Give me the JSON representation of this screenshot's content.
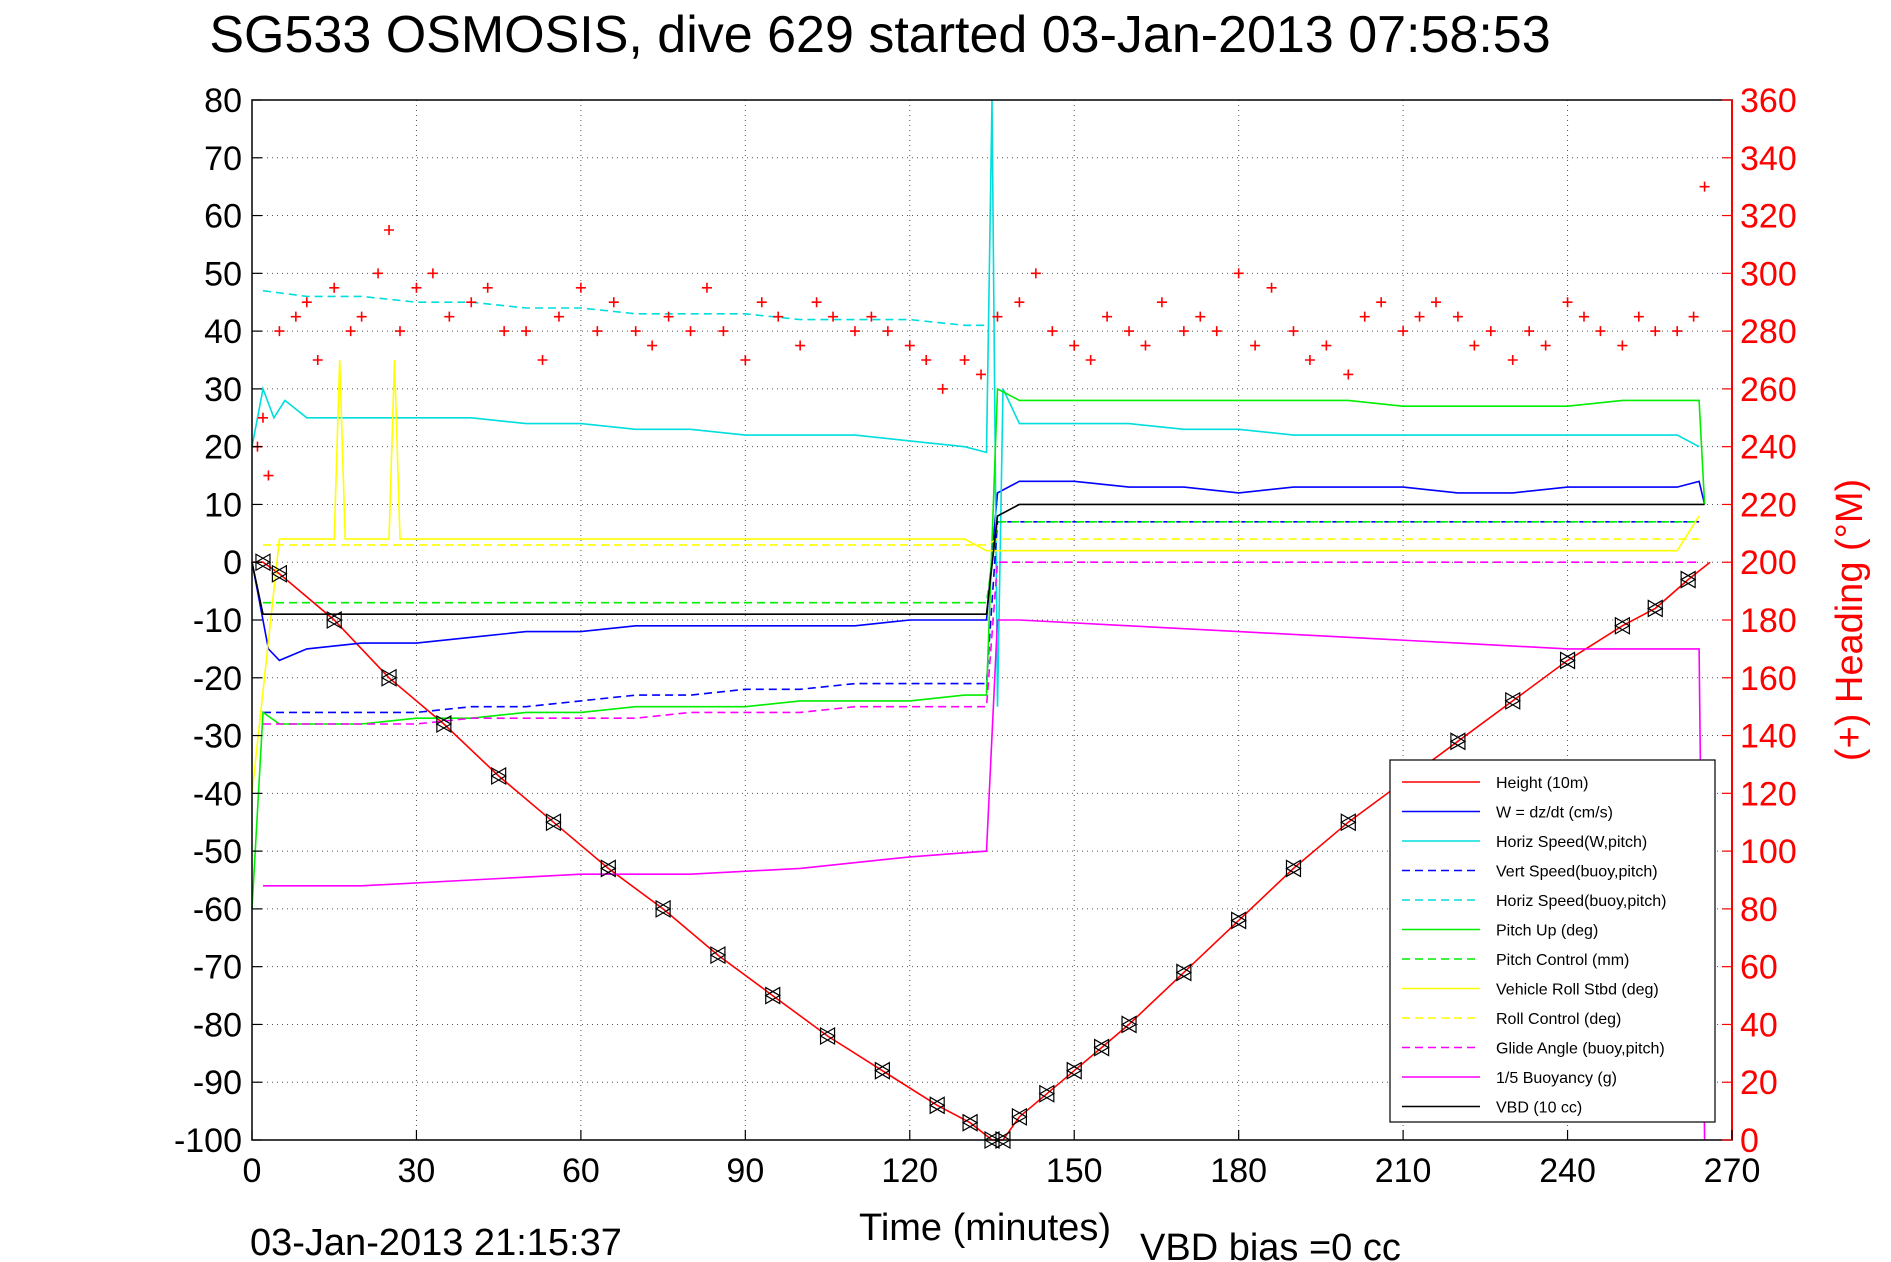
{
  "chart_data": {
    "type": "line",
    "title": "SG533 OSMOSIS, dive 629 started 03-Jan-2013 07:58:53",
    "xlabel": "Time (minutes)",
    "ylabel_right": "(+) Heading (°M)",
    "xlim": [
      0,
      270
    ],
    "ylim_left": [
      -100,
      80
    ],
    "ylim_right": [
      0,
      360
    ],
    "x_ticks": [
      "0",
      "30",
      "60",
      "90",
      "120",
      "150",
      "180",
      "210",
      "240",
      "270"
    ],
    "y_left_ticks": [
      "80",
      "70",
      "60",
      "50",
      "40",
      "30",
      "20",
      "10",
      "0",
      "-10",
      "-20",
      "-30",
      "-40",
      "-50",
      "-60",
      "-70",
      "-80",
      "-90",
      "-100"
    ],
    "y_right_ticks": [
      "360",
      "340",
      "320",
      "300",
      "280",
      "260",
      "240",
      "220",
      "200",
      "180",
      "160",
      "140",
      "120",
      "100",
      "80",
      "60",
      "40",
      "20",
      "0"
    ],
    "grid": true,
    "legend_position": "bottom-right",
    "footer_left": "03-Jan-2013 21:15:37",
    "footer_right": "VBD bias =0 cc",
    "series": [
      {
        "name": "Height (10m)",
        "color": "#ff0000",
        "style": "solid",
        "axis": "left",
        "x": [
          0,
          2,
          5,
          15,
          25,
          35,
          45,
          55,
          65,
          75,
          85,
          95,
          105,
          115,
          125,
          131,
          135,
          137,
          140,
          145,
          150,
          155,
          160,
          170,
          180,
          190,
          200,
          210,
          220,
          230,
          240,
          250,
          256,
          262,
          266
        ],
        "y": [
          0,
          0,
          -2,
          -10,
          -20,
          -28,
          -37,
          -45,
          -53,
          -60,
          -68,
          -75,
          -82,
          -88,
          -94,
          -97,
          -100,
          -100,
          -96,
          -92,
          -88,
          -84,
          -80,
          -71,
          -62,
          -53,
          -45,
          -38,
          -31,
          -24,
          -17,
          -11,
          -8,
          -3,
          0
        ]
      },
      {
        "name": "W = dz/dt (cm/s)",
        "color": "#0000ff",
        "style": "solid",
        "axis": "left",
        "x": [
          0,
          1,
          3,
          5,
          10,
          20,
          30,
          40,
          50,
          60,
          70,
          80,
          90,
          100,
          110,
          120,
          130,
          134,
          136,
          140,
          150,
          160,
          170,
          180,
          190,
          200,
          210,
          220,
          230,
          240,
          250,
          260,
          264,
          265
        ],
        "y": [
          0,
          -5,
          -15,
          -17,
          -15,
          -14,
          -14,
          -13,
          -12,
          -12,
          -11,
          -11,
          -11,
          -11,
          -11,
          -10,
          -10,
          -10,
          12,
          14,
          14,
          13,
          13,
          12,
          13,
          13,
          13,
          12,
          12,
          13,
          13,
          13,
          14,
          10
        ]
      },
      {
        "name": "Horiz Speed(W,pitch)",
        "color": "#00dddd",
        "style": "solid",
        "axis": "left",
        "x": [
          0,
          2,
          4,
          6,
          10,
          20,
          30,
          40,
          50,
          60,
          70,
          80,
          90,
          100,
          110,
          120,
          130,
          134,
          135,
          136,
          137,
          140,
          150,
          160,
          170,
          180,
          190,
          200,
          210,
          220,
          230,
          240,
          250,
          260,
          264
        ],
        "y": [
          20,
          30,
          25,
          28,
          25,
          25,
          25,
          25,
          24,
          24,
          23,
          23,
          22,
          22,
          22,
          21,
          20,
          19,
          80,
          -25,
          30,
          24,
          24,
          24,
          23,
          23,
          22,
          22,
          22,
          22,
          22,
          22,
          22,
          22,
          20
        ]
      },
      {
        "name": "Vert Speed(buoy,pitch)",
        "color": "#0000ff",
        "style": "dashed",
        "axis": "left",
        "x": [
          2,
          10,
          20,
          30,
          40,
          50,
          60,
          70,
          80,
          90,
          100,
          110,
          120,
          130,
          134,
          136,
          140,
          150,
          160,
          170,
          180,
          190,
          200,
          210,
          220,
          230,
          240,
          250,
          260,
          264
        ],
        "y": [
          -26,
          -26,
          -26,
          -26,
          -25,
          -25,
          -24,
          -23,
          -23,
          -22,
          -22,
          -21,
          -21,
          -21,
          -21,
          7,
          7,
          7,
          7,
          7,
          7,
          7,
          7,
          7,
          7,
          7,
          7,
          7,
          7,
          7
        ]
      },
      {
        "name": "Horiz Speed(buoy,pitch)",
        "color": "#00dddd",
        "style": "dashed",
        "axis": "left",
        "x": [
          2,
          10,
          20,
          30,
          40,
          50,
          60,
          70,
          80,
          90,
          100,
          110,
          120,
          130,
          134
        ],
        "y": [
          47,
          46,
          46,
          45,
          45,
          44,
          44,
          43,
          43,
          43,
          42,
          42,
          42,
          41,
          41
        ]
      },
      {
        "name": "Pitch Up (deg)",
        "color": "#00ee00",
        "style": "solid",
        "axis": "left",
        "x": [
          0,
          2,
          5,
          10,
          20,
          30,
          40,
          50,
          60,
          70,
          80,
          90,
          100,
          110,
          120,
          130,
          134,
          136,
          140,
          150,
          160,
          170,
          180,
          190,
          200,
          210,
          220,
          230,
          240,
          250,
          260,
          264,
          265
        ],
        "y": [
          -60,
          -26,
          -28,
          -28,
          -28,
          -27,
          -27,
          -26,
          -26,
          -25,
          -25,
          -25,
          -24,
          -24,
          -24,
          -23,
          -23,
          30,
          28,
          28,
          28,
          28,
          28,
          28,
          28,
          27,
          27,
          27,
          27,
          28,
          28,
          28,
          10
        ]
      },
      {
        "name": "Pitch Control (mm)",
        "color": "#00ee00",
        "style": "dashed",
        "axis": "left",
        "x": [
          2,
          30,
          60,
          90,
          120,
          134,
          136,
          150,
          180,
          210,
          240,
          264
        ],
        "y": [
          -7,
          -7,
          -7,
          -7,
          -7,
          -7,
          7,
          7,
          7,
          7,
          7,
          7
        ]
      },
      {
        "name": "Vehicle Roll Stbd (deg)",
        "color": "#ffff00",
        "style": "solid",
        "axis": "left",
        "x": [
          0,
          5,
          10,
          15,
          16,
          17,
          20,
          25,
          26,
          27,
          30,
          60,
          90,
          120,
          130,
          134,
          136,
          140,
          160,
          180,
          200,
          220,
          240,
          260,
          264
        ],
        "y": [
          -40,
          4,
          4,
          4,
          35,
          4,
          4,
          4,
          35,
          4,
          4,
          4,
          4,
          4,
          4,
          2,
          2,
          2,
          2,
          2,
          2,
          2,
          2,
          2,
          8
        ]
      },
      {
        "name": "Roll Control (deg)",
        "color": "#ffff00",
        "style": "dashed",
        "axis": "left",
        "x": [
          2,
          30,
          60,
          90,
          120,
          134,
          136,
          170,
          210,
          240,
          264
        ],
        "y": [
          3,
          3,
          3,
          3,
          3,
          3,
          4,
          4,
          4,
          4,
          4
        ]
      },
      {
        "name": "Glide Angle (buoy,pitch)",
        "color": "#ff00ff",
        "style": "dashed",
        "axis": "left",
        "x": [
          2,
          10,
          20,
          30,
          40,
          50,
          60,
          70,
          80,
          90,
          100,
          110,
          120,
          130,
          134,
          136,
          150,
          180,
          210,
          240,
          264
        ],
        "y": [
          -28,
          -28,
          -28,
          -28,
          -27,
          -27,
          -27,
          -27,
          -26,
          -26,
          -26,
          -25,
          -25,
          -25,
          -25,
          0,
          0,
          0,
          0,
          0,
          0
        ]
      },
      {
        "name": "1/5 Buoyancy (g)",
        "color": "#ff00ff",
        "style": "solid",
        "axis": "left",
        "x": [
          2,
          20,
          40,
          60,
          80,
          100,
          120,
          134,
          135,
          136,
          140,
          160,
          180,
          200,
          220,
          240,
          250,
          264,
          265
        ],
        "y": [
          -56,
          -56,
          -55,
          -54,
          -54,
          -53,
          -51,
          -50,
          -30,
          -10,
          -10,
          -11,
          -12,
          -13,
          -14,
          -15,
          -15,
          -15,
          -100
        ]
      },
      {
        "name": "VBD (10 cc)",
        "color": "#000000",
        "style": "solid",
        "axis": "left",
        "x": [
          0,
          2,
          10,
          30,
          60,
          90,
          120,
          134,
          136,
          140,
          160,
          180,
          210,
          240,
          265
        ],
        "y": [
          0,
          -9,
          -9,
          -9,
          -9,
          -9,
          -9,
          -9,
          8,
          10,
          10,
          10,
          10,
          10,
          10
        ]
      },
      {
        "name": "Heading",
        "color": "#ff0000",
        "style": "markers-plus",
        "axis": "right",
        "x": [
          1,
          2,
          3,
          5,
          8,
          10,
          12,
          15,
          18,
          20,
          23,
          25,
          27,
          30,
          33,
          36,
          40,
          43,
          46,
          50,
          53,
          56,
          60,
          63,
          66,
          70,
          73,
          76,
          80,
          83,
          86,
          90,
          93,
          96,
          100,
          103,
          106,
          110,
          113,
          116,
          120,
          123,
          126,
          130,
          133,
          136,
          140,
          143,
          146,
          150,
          153,
          156,
          160,
          163,
          166,
          170,
          173,
          176,
          180,
          183,
          186,
          190,
          193,
          196,
          200,
          203,
          206,
          210,
          213,
          216,
          220,
          223,
          226,
          230,
          233,
          236,
          240,
          243,
          246,
          250,
          253,
          256,
          260,
          263,
          265
        ],
        "y": [
          240,
          250,
          230,
          280,
          285,
          290,
          270,
          295,
          280,
          285,
          300,
          315,
          280,
          295,
          300,
          285,
          290,
          295,
          280,
          280,
          270,
          285,
          295,
          280,
          290,
          280,
          275,
          285,
          280,
          295,
          280,
          270,
          290,
          285,
          275,
          290,
          285,
          280,
          285,
          280,
          275,
          270,
          260,
          270,
          265,
          285,
          290,
          300,
          280,
          275,
          270,
          285,
          280,
          275,
          290,
          280,
          285,
          280,
          300,
          275,
          295,
          280,
          270,
          275,
          265,
          285,
          290,
          280,
          285,
          290,
          285,
          275,
          280,
          270,
          280,
          275,
          290,
          285,
          280,
          275,
          285,
          280,
          280,
          285,
          330
        ]
      }
    ],
    "markers_note_free": false
  },
  "legend": {
    "items": [
      {
        "label": "Height (10m)",
        "color": "#ff0000",
        "dash": ""
      },
      {
        "label": "W = dz/dt (cm/s)",
        "color": "#0000ff",
        "dash": ""
      },
      {
        "label": "Horiz Speed(W,pitch)",
        "color": "#00dddd",
        "dash": ""
      },
      {
        "label": "Vert Speed(buoy,pitch)",
        "color": "#0000ff",
        "dash": "8,5"
      },
      {
        "label": "Horiz Speed(buoy,pitch)",
        "color": "#00dddd",
        "dash": "8,5"
      },
      {
        "label": "Pitch Up (deg)",
        "color": "#00ee00",
        "dash": ""
      },
      {
        "label": "Pitch Control (mm)",
        "color": "#00ee00",
        "dash": "8,5"
      },
      {
        "label": "Vehicle Roll Stbd (deg)",
        "color": "#ffff00",
        "dash": ""
      },
      {
        "label": "Roll Control (deg)",
        "color": "#ffff00",
        "dash": "8,5"
      },
      {
        "label": "Glide Angle (buoy,pitch)",
        "color": "#ff00ff",
        "dash": "8,5"
      },
      {
        "label": "1/5 Buoyancy (g)",
        "color": "#ff00ff",
        "dash": ""
      },
      {
        "label": "VBD (10 cc)",
        "color": "#000000",
        "dash": ""
      }
    ]
  }
}
